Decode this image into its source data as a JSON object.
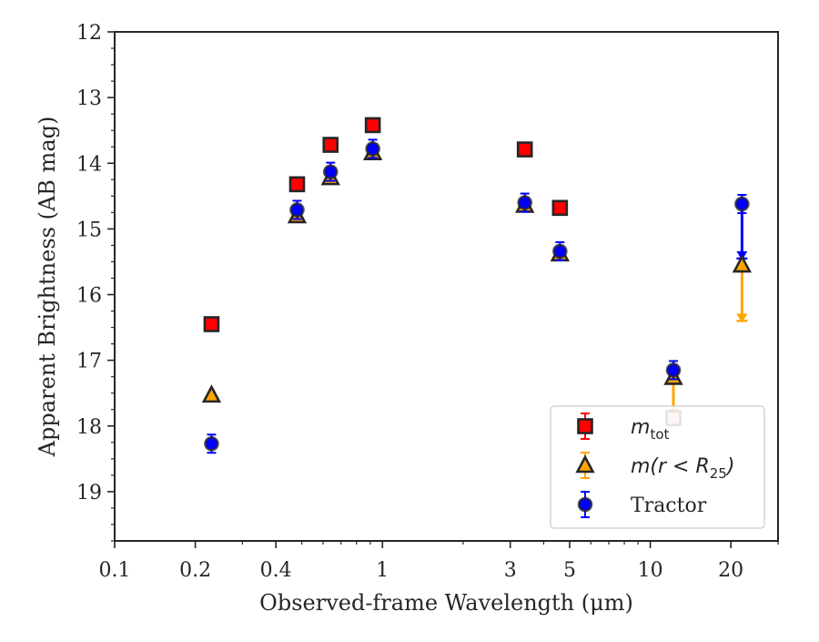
{
  "chart_data": {
    "type": "scatter",
    "title": "",
    "xlabel": "Observed-frame Wavelength (μm)",
    "ylabel": "Apparent Brightness (AB mag)",
    "xscale": "log",
    "xlim": [
      0.1,
      30
    ],
    "ylim": [
      19.75,
      12
    ],
    "y_inverted": true,
    "x_ticks": [
      0.1,
      0.2,
      0.4,
      1,
      3,
      5,
      10,
      20
    ],
    "x_tick_labels": [
      "0.1",
      "0.2",
      "0.4",
      "1",
      "3",
      "5",
      "10",
      "20"
    ],
    "y_ticks": [
      12,
      13,
      14,
      15,
      16,
      17,
      18,
      19
    ],
    "y_tick_labels": [
      "12",
      "13",
      "14",
      "15",
      "16",
      "17",
      "18",
      "19"
    ],
    "grid": false,
    "legend_position": "lower-right",
    "series": [
      {
        "name": "m_tot",
        "legend_main": "m",
        "legend_sub": "tot",
        "marker": "square",
        "color": "#ff0000",
        "edge_color": "#262626",
        "points": [
          {
            "x": 0.23,
            "y": 16.45
          },
          {
            "x": 0.48,
            "y": 14.32
          },
          {
            "x": 0.64,
            "y": 13.72
          },
          {
            "x": 0.92,
            "y": 13.42
          },
          {
            "x": 3.4,
            "y": 13.79
          },
          {
            "x": 4.6,
            "y": 14.68
          },
          {
            "x": 12.2,
            "y": 17.88,
            "faded": true
          },
          {
            "x": 22,
            "y": null
          }
        ]
      },
      {
        "name": "m(r < R25)",
        "legend_main": "m(r < R",
        "legend_sub": "25",
        "legend_tail": ")",
        "marker": "triangle",
        "color": "#ffa500",
        "edge_color": "#262626",
        "points": [
          {
            "x": 0.23,
            "y": 17.53
          },
          {
            "x": 0.48,
            "y": 14.8
          },
          {
            "x": 0.64,
            "y": 14.22
          },
          {
            "x": 0.92,
            "y": 13.84
          },
          {
            "x": 3.4,
            "y": 14.64
          },
          {
            "x": 4.6,
            "y": 15.38
          },
          {
            "x": 12.2,
            "y": 17.26,
            "arrow_to": 17.85
          },
          {
            "x": 22,
            "y": 15.55,
            "arrow_to": 16.4
          }
        ]
      },
      {
        "name": "Tractor",
        "legend_main": "Tractor",
        "marker": "circle",
        "color": "#0000ff",
        "edge_color": "#262626",
        "points": [
          {
            "x": 0.23,
            "y": 18.27
          },
          {
            "x": 0.48,
            "y": 14.71
          },
          {
            "x": 0.64,
            "y": 14.13
          },
          {
            "x": 0.92,
            "y": 13.78
          },
          {
            "x": 3.4,
            "y": 14.6
          },
          {
            "x": 4.6,
            "y": 15.34
          },
          {
            "x": 12.2,
            "y": 17.15
          },
          {
            "x": 22,
            "y": 14.62,
            "arrow_to": 15.45
          }
        ]
      }
    ]
  }
}
